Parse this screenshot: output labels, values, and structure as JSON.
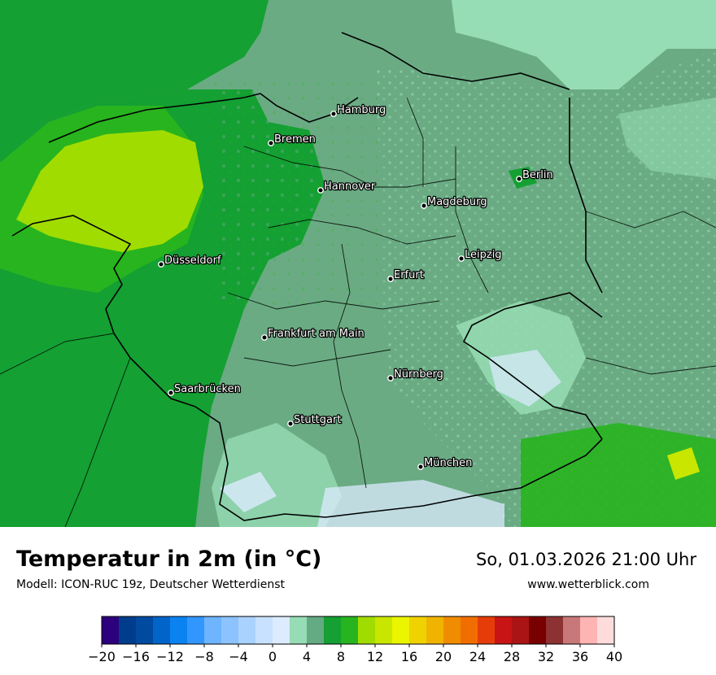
{
  "map": {
    "cities": [
      {
        "name": "Hamburg"
      },
      {
        "name": "Bremen"
      },
      {
        "name": "Berlin"
      },
      {
        "name": "Hannover"
      },
      {
        "name": "Magdeburg"
      },
      {
        "name": "Düsseldorf"
      },
      {
        "name": "Leipzig"
      },
      {
        "name": "Erfurt"
      },
      {
        "name": "Frankfurt am Main"
      },
      {
        "name": "Nürnberg"
      },
      {
        "name": "Saarbrücken"
      },
      {
        "name": "Stuttgart"
      },
      {
        "name": "München"
      }
    ]
  },
  "footer": {
    "title": "Temperatur in 2m (in °C)",
    "subtitle": "Modell: ICON-RUC 19z, Deutscher Wetterdienst",
    "datetime": "So, 01.03.2026 21:00 Uhr",
    "website": "www.wetterblick.com"
  },
  "legend": {
    "colors": [
      "#2d007d",
      "#003c8c",
      "#004aa0",
      "#0064c8",
      "#0a82f0",
      "#3296ff",
      "#6eb4ff",
      "#8cc3ff",
      "#aad2ff",
      "#c8e1ff",
      "#dcebff",
      "#96dcb4",
      "#64aa82",
      "#14a032",
      "#28b41e",
      "#a0dc00",
      "#c8e600",
      "#ebf500",
      "#f0d200",
      "#f0b400",
      "#f08c00",
      "#f06e00",
      "#e63c0a",
      "#c81414",
      "#aa1414",
      "#780000",
      "#8c3232",
      "#c87878",
      "#ffb4b4",
      "#ffdcdc"
    ],
    "ticks": [
      "−20",
      "−16",
      "−12",
      "−8",
      "−4",
      "0",
      "4",
      "8",
      "12",
      "16",
      "20",
      "24",
      "28",
      "32",
      "36",
      "40"
    ]
  }
}
